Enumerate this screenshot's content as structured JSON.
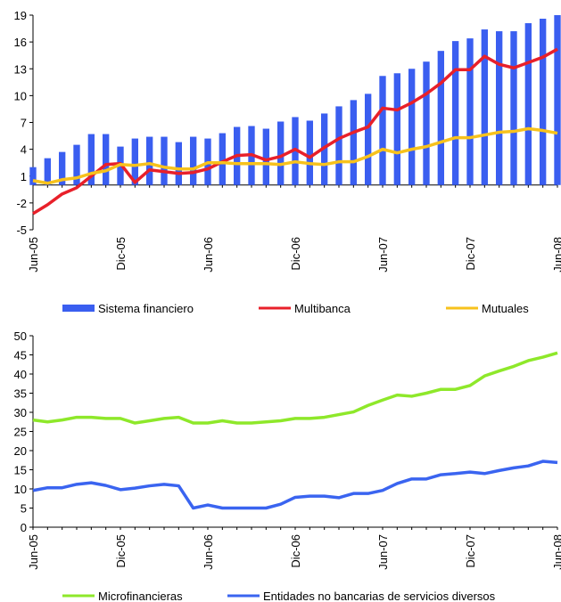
{
  "chart_data": [
    {
      "type": "bar",
      "categories": [
        "Jun-05",
        null,
        null,
        null,
        null,
        null,
        "Dic-05",
        null,
        null,
        null,
        null,
        null,
        "Jun-06",
        null,
        null,
        null,
        null,
        null,
        "Dic-06",
        null,
        null,
        null,
        null,
        null,
        "Jun-07",
        null,
        null,
        null,
        null,
        null,
        "Dic-07",
        null,
        null,
        null,
        null,
        null,
        "Jun-08"
      ],
      "series": [
        {
          "name": "Sistema financiero",
          "type": "bar",
          "color": "#3a5ef0",
          "values": [
            2.0,
            3.0,
            3.7,
            4.5,
            5.7,
            5.7,
            4.3,
            5.2,
            5.4,
            5.4,
            4.8,
            5.4,
            5.2,
            5.8,
            6.5,
            6.6,
            6.3,
            7.1,
            7.6,
            7.2,
            8.0,
            8.8,
            9.5,
            10.2,
            12.2,
            12.5,
            13.0,
            13.8,
            15.0,
            16.1,
            16.4,
            17.4,
            17.2,
            17.2,
            18.1,
            18.6,
            19.0
          ]
        },
        {
          "name": "Multibanca",
          "type": "line",
          "color": "#e8202a",
          "values": [
            -3.2,
            -2.2,
            -1.0,
            -0.3,
            1.0,
            2.3,
            2.4,
            0.3,
            1.7,
            1.5,
            1.3,
            1.4,
            1.8,
            2.6,
            3.3,
            3.4,
            2.8,
            3.2,
            4.0,
            3.1,
            4.2,
            5.2,
            5.9,
            6.5,
            8.6,
            8.4,
            9.2,
            10.2,
            11.4,
            12.9,
            12.9,
            14.4,
            13.5,
            13.1,
            13.7,
            14.3,
            15.2
          ]
        },
        {
          "name": "Mutuales",
          "type": "line",
          "color": "#f7c21c",
          "values": [
            0.5,
            0.2,
            0.6,
            0.8,
            1.3,
            1.6,
            2.3,
            2.2,
            2.4,
            2.0,
            1.8,
            1.8,
            2.5,
            2.5,
            2.4,
            2.4,
            2.4,
            2.3,
            2.6,
            2.4,
            2.3,
            2.6,
            2.6,
            3.2,
            4.0,
            3.6,
            4.0,
            4.3,
            4.8,
            5.3,
            5.3,
            5.6,
            5.9,
            6.0,
            6.3,
            6.1,
            5.8
          ]
        }
      ],
      "ylim": [
        -5,
        19
      ],
      "yticks": [
        -5,
        -2,
        1,
        4,
        7,
        10,
        13,
        16,
        19
      ]
    },
    {
      "type": "line",
      "categories": [
        "Jun-05",
        null,
        null,
        null,
        null,
        null,
        "Dic-05",
        null,
        null,
        null,
        null,
        null,
        "Jun-06",
        null,
        null,
        null,
        null,
        null,
        "Dic-06",
        null,
        null,
        null,
        null,
        null,
        "Jun-07",
        null,
        null,
        null,
        null,
        null,
        "Dic-07",
        null,
        null,
        null,
        null,
        null,
        "Jun-08"
      ],
      "series": [
        {
          "name": "Microfinancieras",
          "type": "line",
          "color": "#8ee82a",
          "values": [
            28,
            27.5,
            28,
            28.7,
            28.7,
            28.4,
            28.4,
            27.2,
            27.8,
            28.4,
            28.7,
            27.2,
            27.2,
            27.8,
            27.2,
            27.2,
            27.5,
            27.8,
            28.4,
            28.4,
            28.7,
            29.4,
            30.1,
            31.8,
            33.2,
            34.5,
            34.2,
            35,
            36,
            36,
            37,
            39.5,
            40.8,
            42,
            43.5,
            44.4,
            45.5
          ]
        },
        {
          "name": "Entidades no bancarias de servicios diversos",
          "type": "line",
          "color": "#3a64f0",
          "values": [
            9.6,
            10.3,
            10.3,
            11.2,
            11.6,
            10.9,
            9.8,
            10.2,
            10.8,
            11.2,
            10.8,
            5.0,
            5.8,
            5.0,
            5.0,
            5.0,
            5.0,
            6.0,
            7.8,
            8.1,
            8.1,
            7.7,
            8.8,
            8.8,
            9.6,
            11.4,
            12.6,
            12.6,
            13.7,
            14.0,
            14.4,
            14.0,
            14.8,
            15.5,
            16.0,
            17.2,
            16.9
          ]
        }
      ],
      "ylim": [
        0,
        50
      ],
      "yticks": [
        0,
        5,
        10,
        15,
        20,
        25,
        30,
        35,
        40,
        45,
        50
      ]
    }
  ]
}
